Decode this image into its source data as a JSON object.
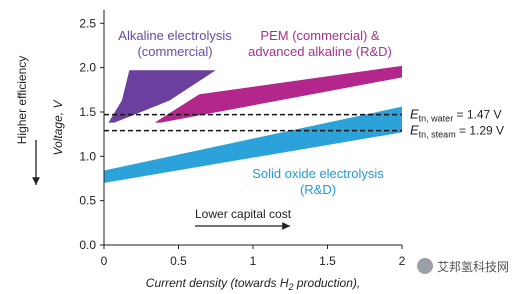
{
  "chart_data": {
    "type": "polygon",
    "y_label": "Voltage, V",
    "side_label": "Higher efficiency",
    "x_label": {
      "before": "Current density (towards H",
      "subscript": "2",
      "after": " production),"
    },
    "arrow_label": "Lower capital cost",
    "xlim": [
      0,
      2.0
    ],
    "ylim": [
      0,
      2.65
    ],
    "xticks": [
      0,
      0.5,
      1,
      1.5,
      2
    ],
    "yticks": [
      {
        "value": 0,
        "label": "0.0"
      },
      0.5,
      {
        "value": 1,
        "label": "1.0"
      },
      1.5,
      {
        "value": 2,
        "label": "2.0"
      },
      2.5
    ],
    "series": [
      {
        "label": [
          "Alkaline electrolysis",
          "(commercial)"
        ],
        "color": "#6a3f9e",
        "label_color": "#6a4aa6",
        "x": [
          0.03,
          0.12,
          0.17,
          0.75,
          0.44,
          0.07
        ],
        "values": [
          1.38,
          1.63,
          1.97,
          1.97,
          1.63,
          1.38
        ]
      },
      {
        "label": [
          "PEM (commercial) &",
          "advanced alkaline (R&D)"
        ],
        "color": "#b3268c",
        "label_color": "#a8308c",
        "x": [
          0.34,
          0.64,
          2.0,
          2.0,
          0.38
        ],
        "values": [
          1.38,
          1.7,
          2.02,
          1.89,
          1.38
        ]
      },
      {
        "label": [
          "Solid oxide electrolysis",
          "(R&D)"
        ],
        "color": "#2ba3da",
        "label_color": "#1f9ad6",
        "x": [
          0.0,
          2.0,
          2.0,
          0.0
        ],
        "values": [
          0.84,
          1.56,
          1.27,
          0.7
        ]
      }
    ],
    "reference_lines": [
      {
        "value": 1.47,
        "symbol": "E",
        "subscript": "tn, water",
        "text": " = 1.47 V"
      },
      {
        "value": 1.29,
        "symbol": "E",
        "subscript": "tn, steam",
        "text": " = 1.29 V"
      }
    ],
    "watermark": "艾邦氢科技网"
  }
}
